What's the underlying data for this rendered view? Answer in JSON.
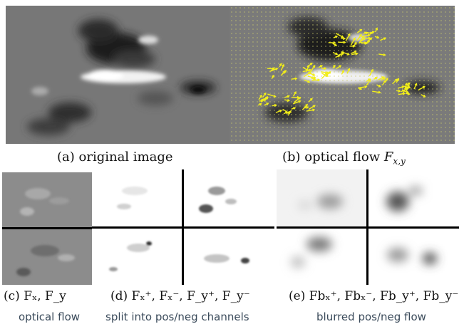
{
  "figure": {
    "panel_a": {
      "caption": "(a) original image"
    },
    "panel_b": {
      "caption_prefix": "(b) optical flow",
      "caption_symbol": "F",
      "caption_subscript": "x,y",
      "arrow_color": "#f2ee1a"
    },
    "panel_c": {
      "caption": "(c) Fₓ, F_y",
      "subcaption": "optical flow"
    },
    "panel_d": {
      "caption": "(d) Fₓ⁺, Fₓ⁻, F_y⁺, F_y⁻",
      "subcaption": "split into pos/neg channels"
    },
    "panel_e": {
      "caption": "(e) Fbₓ⁺, Fbₓ⁻, Fb_y⁺, Fb_y⁻",
      "subcaption": "blurred pos/neg flow"
    }
  }
}
